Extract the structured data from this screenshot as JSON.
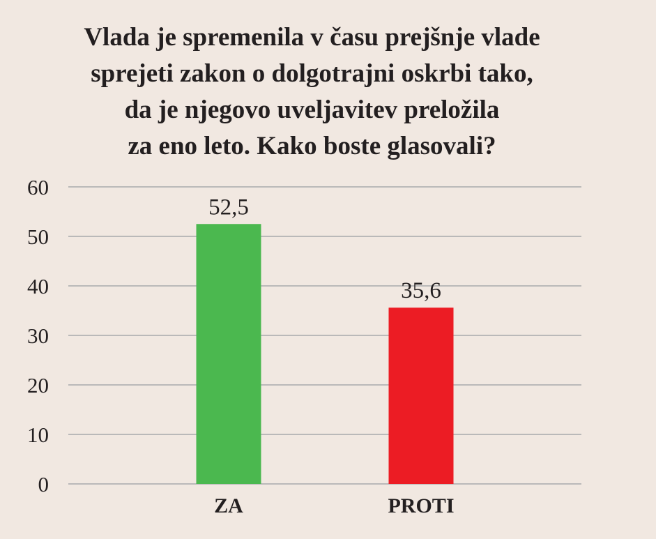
{
  "chart_data": {
    "type": "bar",
    "title_lines": [
      "Vlada je spremenila v času prejšnje vlade",
      "sprejeti zakon o dolgotrajni oskrbi tako,",
      "da je njegovo uveljavitev preložila",
      "za eno leto. Kako boste glasovali?"
    ],
    "categories": [
      "ZA",
      "PROTI"
    ],
    "values": [
      52.5,
      35.6
    ],
    "value_labels": [
      "52,5",
      "35,6"
    ],
    "colors": [
      "#4bb84f",
      "#ec1c24"
    ],
    "ylim": [
      0,
      60
    ],
    "yticks": [
      0,
      10,
      20,
      30,
      40,
      50,
      60
    ],
    "ytick_labels": [
      "0",
      "10",
      "20",
      "30",
      "40",
      "50",
      "60"
    ],
    "grid": true,
    "legend": "none",
    "xlabel": "",
    "ylabel": ""
  }
}
